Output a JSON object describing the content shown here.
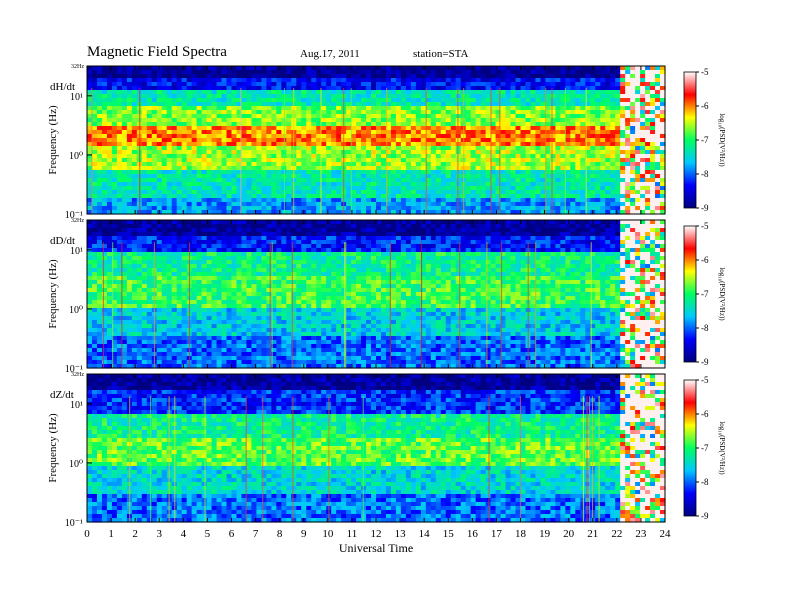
{
  "header": {
    "title": "Magnetic  Field  Spectra",
    "date": "Aug.17, 2011",
    "station": "station=STA"
  },
  "chart_data": {
    "type": "heatmap",
    "xlabel": "Universal Time",
    "xlim": [
      0,
      24
    ],
    "x_ticks": [
      "0",
      "1",
      "2",
      "3",
      "4",
      "5",
      "6",
      "7",
      "8",
      "9",
      "10",
      "11",
      "12",
      "13",
      "14",
      "15",
      "16",
      "17",
      "18",
      "19",
      "20",
      "21",
      "22",
      "23",
      "24"
    ],
    "ylabel": "Frequency  (Hz)",
    "y_scale": "log",
    "ylim": [
      0.1,
      32
    ],
    "y_top_label": "32Hz",
    "y_tick_labels": [
      "10⁻¹",
      "10⁰",
      "10¹"
    ],
    "panels": [
      {
        "label": "dH/dt"
      },
      {
        "label": "dD/dt"
      },
      {
        "label": "dZ/dt"
      }
    ],
    "colorbar": {
      "label": "log₁₀(PSD(V²/Hz))",
      "range": [
        -9,
        -5
      ],
      "ticks": [
        "-5",
        "-6",
        "-7",
        "-8",
        "-9"
      ],
      "colors": [
        "#000080",
        "#0000ff",
        "#00c8ff",
        "#00ff60",
        "#ffff00",
        "#ff0000",
        "#ffffff"
      ]
    }
  }
}
